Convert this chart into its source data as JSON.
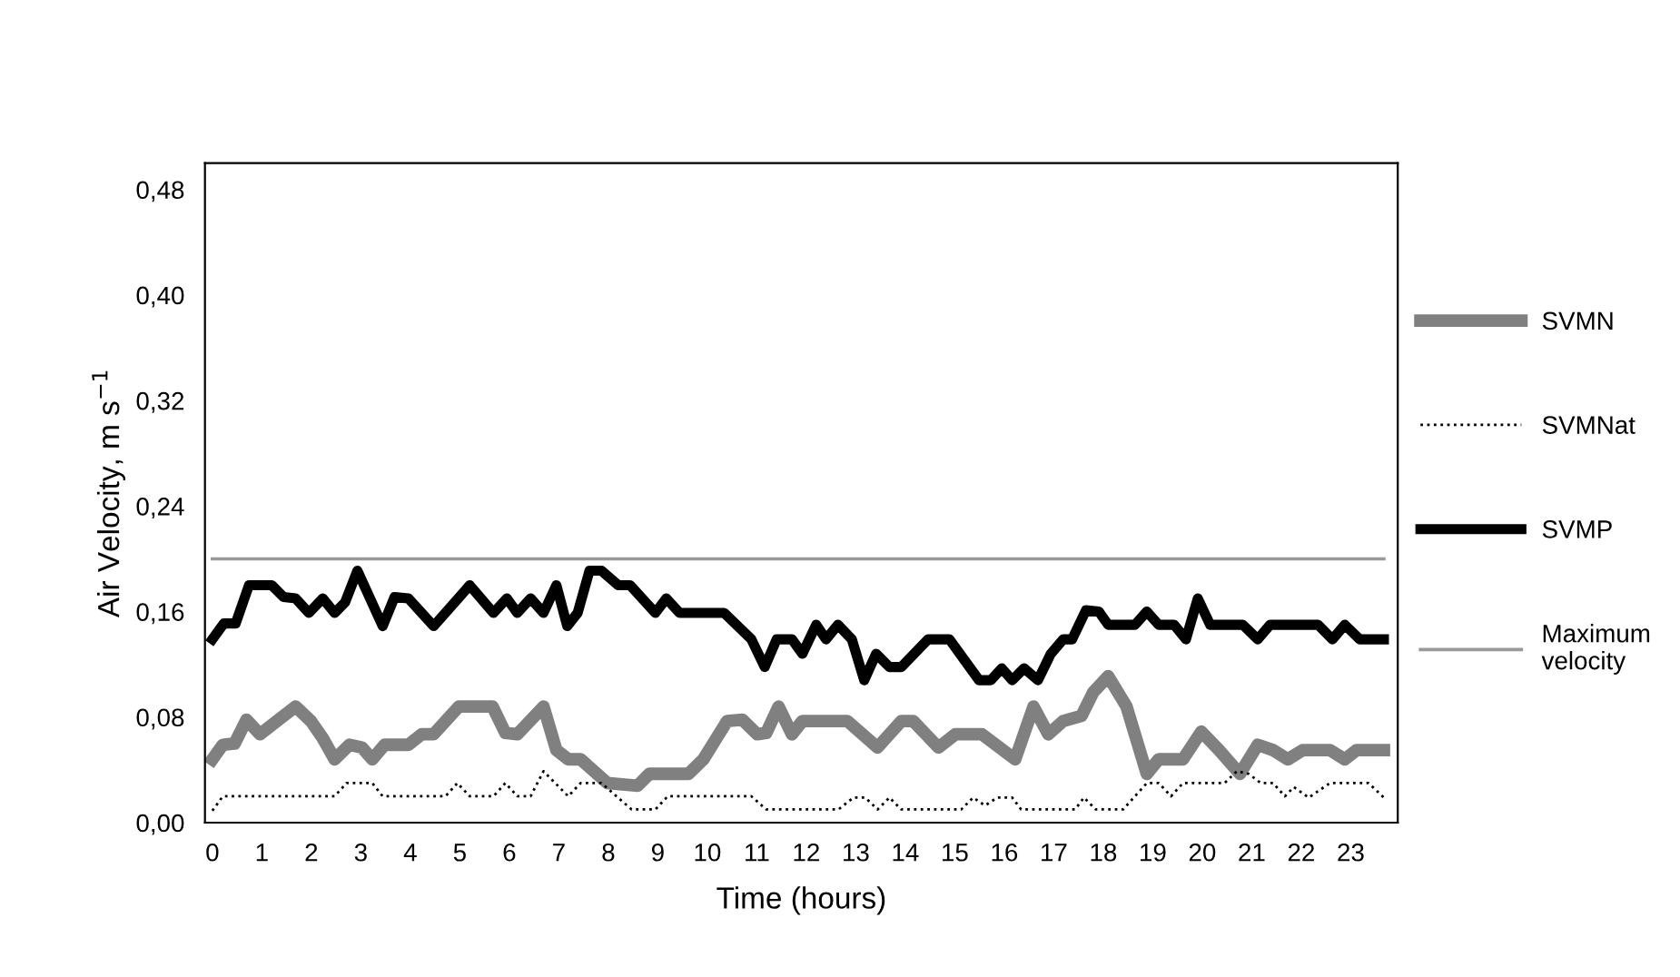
{
  "chart_data": {
    "type": "line",
    "xlabel": "Time (hours)",
    "ylabel": "Air Velocity, m s$^{−1}$",
    "xlim": [
      -0.15,
      23.95
    ],
    "xticks": [
      0,
      1,
      2,
      3,
      4,
      5,
      6,
      7,
      8,
      9,
      10,
      11,
      12,
      13,
      14,
      15,
      16,
      17,
      18,
      19,
      20,
      21,
      22,
      23
    ],
    "ylim": [
      0,
      0.5
    ],
    "yticks": [
      {
        "value": 0,
        "label": "0,00"
      },
      {
        "value": 0.08,
        "label": "0,08"
      },
      {
        "value": 0.16,
        "label": "0,16"
      },
      {
        "value": 0.24,
        "label": "0,24"
      },
      {
        "value": 0.32,
        "label": "0,32"
      },
      {
        "value": 0.4,
        "label": "0,40"
      },
      {
        "value": 0.48,
        "label": "0,48"
      }
    ],
    "grid": false,
    "legend": "right",
    "marker": "none",
    "series": [
      {
        "name": "SVMN",
        "color": "#808080",
        "line_style": "solid",
        "x": [
          0,
          0.21,
          0.45,
          0.69,
          0.96,
          1.2,
          1.68,
          1.99,
          2.23,
          2.47,
          2.77,
          3.02,
          3.23,
          3.48,
          3.96,
          4.23,
          4.47,
          4.98,
          5.66,
          5.92,
          6.16,
          6.69,
          6.95,
          7.19,
          7.44,
          7.98,
          8.59,
          8.83,
          9.07,
          9.62,
          9.92,
          10.4,
          10.71,
          11.01,
          11.19,
          11.44,
          11.71,
          11.92,
          12.83,
          13.44,
          13.92,
          14.16,
          14.67,
          15.01,
          15.55,
          16.22,
          16.59,
          16.89,
          17.19,
          17.56,
          17.8,
          18.1,
          18.47,
          18.88,
          19.12,
          19.61,
          19.98,
          20.34,
          20.76,
          21.12,
          21.43,
          21.73,
          22.03,
          22.58,
          22.88,
          23.12,
          23.67
        ],
        "values": [
          0.048,
          0.059,
          0.06,
          0.078,
          0.067,
          0.074,
          0.088,
          0.077,
          0.064,
          0.048,
          0.059,
          0.057,
          0.048,
          0.059,
          0.059,
          0.067,
          0.067,
          0.088,
          0.088,
          0.068,
          0.067,
          0.088,
          0.055,
          0.048,
          0.048,
          0.03,
          0.028,
          0.037,
          0.037,
          0.037,
          0.048,
          0.077,
          0.078,
          0.067,
          0.068,
          0.088,
          0.067,
          0.077,
          0.077,
          0.057,
          0.077,
          0.077,
          0.057,
          0.067,
          0.067,
          0.048,
          0.088,
          0.067,
          0.077,
          0.081,
          0.099,
          0.111,
          0.088,
          0.037,
          0.048,
          0.048,
          0.069,
          0.055,
          0.037,
          0.059,
          0.055,
          0.048,
          0.055,
          0.055,
          0.048,
          0.055,
          0.055
        ]
      },
      {
        "name": "SVMNat",
        "color": "#000000",
        "line_style": "dotted",
        "x": [
          0,
          0.21,
          2.47,
          2.71,
          3.23,
          3.44,
          4.71,
          4.95,
          5.2,
          5.68,
          5.92,
          6.16,
          6.43,
          6.69,
          7.19,
          7.44,
          7.86,
          8.47,
          8.95,
          9.2,
          10.89,
          11.19,
          11.71,
          12.65,
          12.95,
          13.19,
          13.44,
          13.68,
          13.92,
          15.13,
          15.37,
          15.61,
          15.86,
          16.16,
          16.34,
          17.43,
          17.61,
          17.85,
          18.4,
          18.88,
          19.12,
          19.37,
          19.61,
          20.45,
          20.7,
          20.94,
          21.18,
          21.43,
          21.67,
          21.85,
          22.15,
          22.58,
          23.36,
          23.67
        ],
        "values": [
          0.009,
          0.02,
          0.02,
          0.03,
          0.03,
          0.02,
          0.02,
          0.03,
          0.02,
          0.02,
          0.03,
          0.02,
          0.02,
          0.039,
          0.02,
          0.03,
          0.03,
          0.01,
          0.01,
          0.02,
          0.02,
          0.01,
          0.01,
          0.01,
          0.019,
          0.019,
          0.01,
          0.019,
          0.01,
          0.01,
          0.019,
          0.013,
          0.019,
          0.019,
          0.01,
          0.01,
          0.019,
          0.01,
          0.01,
          0.03,
          0.03,
          0.02,
          0.03,
          0.03,
          0.039,
          0.037,
          0.03,
          0.03,
          0.02,
          0.027,
          0.019,
          0.03,
          0.03,
          0.019
        ]
      },
      {
        "name": "SVMP",
        "color": "#000000",
        "line_style": "solid",
        "x": [
          0,
          0.23,
          0.47,
          0.74,
          1.2,
          1.44,
          1.68,
          1.95,
          2.23,
          2.47,
          2.68,
          2.93,
          3.44,
          3.68,
          3.96,
          4.47,
          5.2,
          5.68,
          5.95,
          6.16,
          6.43,
          6.69,
          6.95,
          7.17,
          7.38,
          7.62,
          7.86,
          8.2,
          8.44,
          8.95,
          9.17,
          9.44,
          10.34,
          10.89,
          11.16,
          11.4,
          11.71,
          11.92,
          12.2,
          12.4,
          12.64,
          12.92,
          13.17,
          13.41,
          13.68,
          13.92,
          14.46,
          14.89,
          15.49,
          15.73,
          15.95,
          16.16,
          16.4,
          16.68,
          16.94,
          17.19,
          17.37,
          17.65,
          17.91,
          18.1,
          18.64,
          18.88,
          19.12,
          19.43,
          19.67,
          19.91,
          20.16,
          20.82,
          21.12,
          21.37,
          22.34,
          22.63,
          22.88,
          23.18,
          23.67
        ],
        "values": [
          0.139,
          0.151,
          0.151,
          0.18,
          0.18,
          0.171,
          0.17,
          0.159,
          0.17,
          0.159,
          0.167,
          0.191,
          0.149,
          0.171,
          0.17,
          0.149,
          0.18,
          0.159,
          0.17,
          0.159,
          0.17,
          0.159,
          0.18,
          0.149,
          0.159,
          0.191,
          0.191,
          0.18,
          0.18,
          0.159,
          0.17,
          0.159,
          0.159,
          0.139,
          0.118,
          0.139,
          0.139,
          0.128,
          0.15,
          0.139,
          0.15,
          0.139,
          0.108,
          0.128,
          0.118,
          0.118,
          0.139,
          0.139,
          0.108,
          0.108,
          0.117,
          0.108,
          0.117,
          0.108,
          0.128,
          0.139,
          0.139,
          0.161,
          0.16,
          0.15,
          0.15,
          0.16,
          0.15,
          0.15,
          0.139,
          0.17,
          0.15,
          0.15,
          0.139,
          0.15,
          0.15,
          0.139,
          0.15,
          0.139,
          0.139
        ]
      },
      {
        "name": "Maximum\nvelocity",
        "color": "#999999",
        "line_style": "solid",
        "x": [
          0,
          23.67
        ],
        "values": [
          0.2,
          0.2
        ]
      }
    ]
  }
}
